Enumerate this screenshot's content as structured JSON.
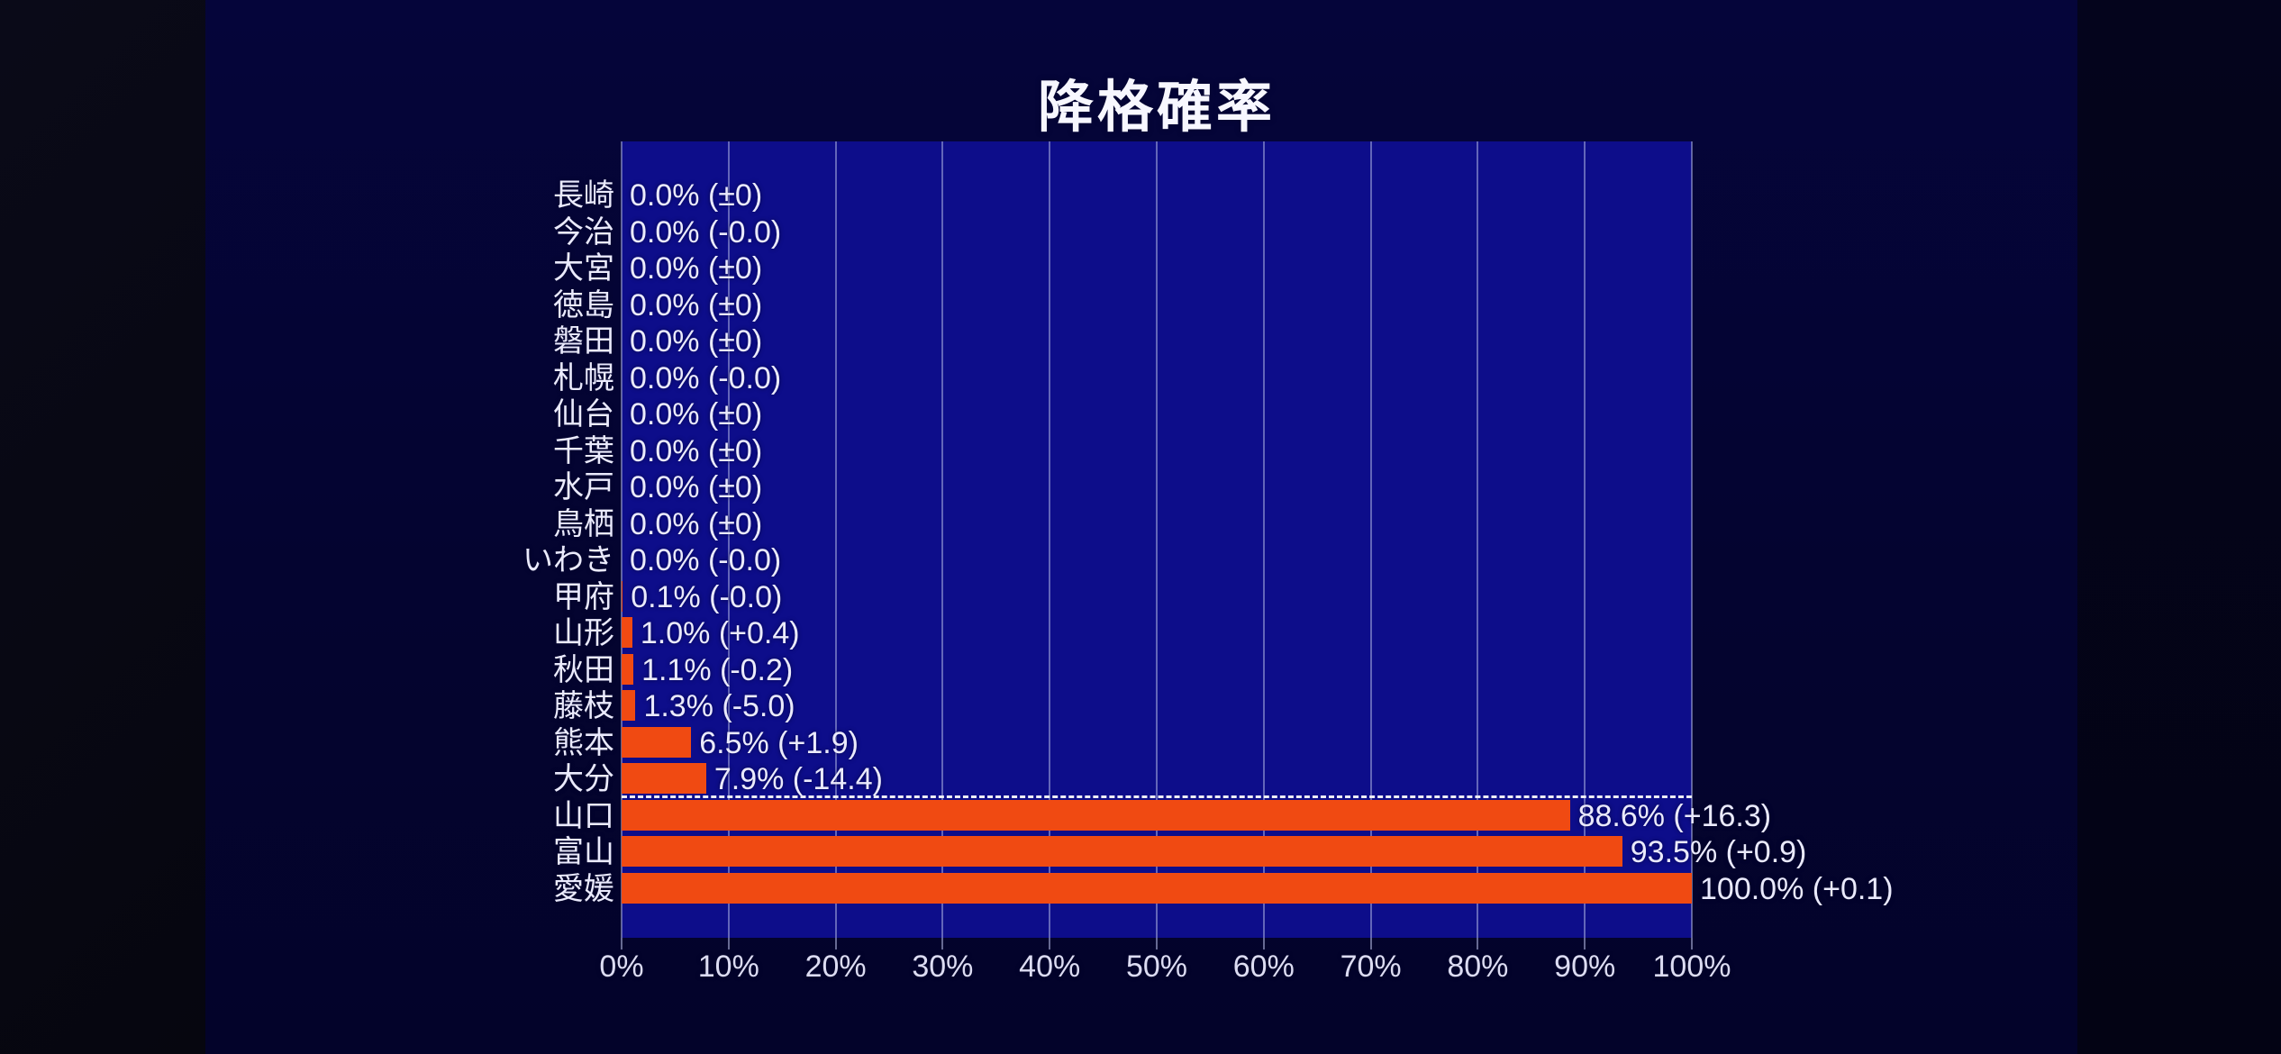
{
  "title": "降格確率",
  "chart_data": {
    "type": "bar",
    "orientation": "horizontal",
    "title": "降格確率",
    "xlabel": "",
    "ylabel": "",
    "xlim": [
      0,
      100
    ],
    "grid": true,
    "legend": false,
    "x_tick_labels": [
      "0%",
      "10%",
      "20%",
      "30%",
      "40%",
      "50%",
      "60%",
      "70%",
      "80%",
      "90%",
      "100%"
    ],
    "categories": [
      "長崎",
      "今治",
      "大宮",
      "徳島",
      "磐田",
      "札幌",
      "仙台",
      "千葉",
      "水戸",
      "鳥栖",
      "いわき",
      "甲府",
      "山形",
      "秋田",
      "藤枝",
      "熊本",
      "大分",
      "山口",
      "富山",
      "愛媛"
    ],
    "values": [
      0.0,
      0.0,
      0.0,
      0.0,
      0.0,
      0.0,
      0.0,
      0.0,
      0.0,
      0.0,
      0.0,
      0.1,
      1.0,
      1.1,
      1.3,
      6.5,
      7.9,
      88.6,
      93.5,
      100.0
    ],
    "value_labels": [
      "0.0% (±0)",
      "0.0% (-0.0)",
      "0.0% (±0)",
      "0.0% (±0)",
      "0.0% (±0)",
      "0.0% (-0.0)",
      "0.0% (±0)",
      "0.0% (±0)",
      "0.0% (±0)",
      "0.0% (±0)",
      "0.0% (-0.0)",
      "0.1% (-0.0)",
      "1.0% (+0.4)",
      "1.1% (-0.2)",
      "1.3% (-5.0)",
      "6.5% (+1.9)",
      "7.9% (-14.4)",
      "88.6% (+16.3)",
      "93.5% (+0.9)",
      "100.0% (+0.1)"
    ],
    "cutoff_dashed_line_before_category": "山口"
  },
  "colors": {
    "bar": "#f04a12",
    "plot_background": "#0d0d8a",
    "page_background": "#040430",
    "gridline": "#babfe8",
    "text": "#eaeafc",
    "cutoff_line": "#ededf5"
  }
}
